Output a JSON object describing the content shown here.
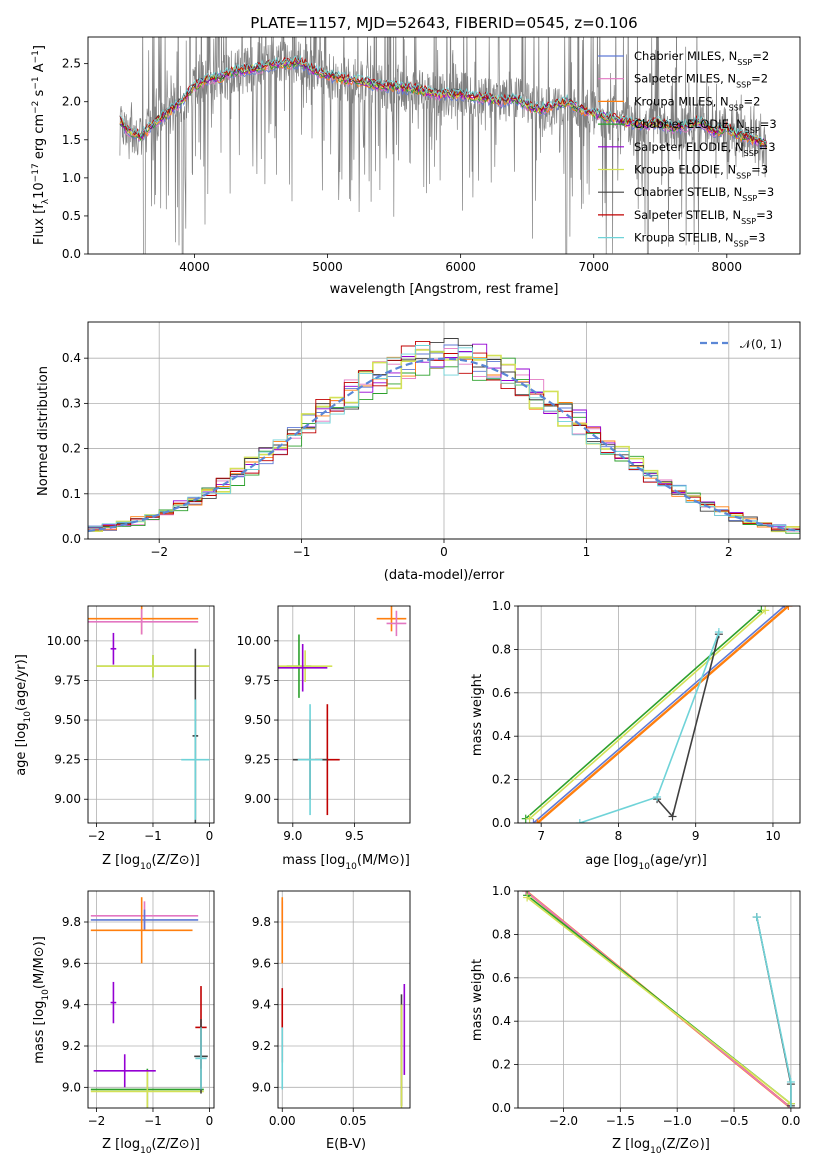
{
  "chart_data": [
    {
      "id": "spectrum",
      "type": "line",
      "title": "PLATE=1157, MJD=52643, FIBERID=0545, z=0.106",
      "xlabel": "wavelength [Angstrom, rest frame]",
      "ylabel": "Flux [f_λ 10^-17 erg cm^-2 s^-1 A^-1]",
      "xlim": [
        3200,
        8550
      ],
      "ylim": [
        0,
        2.85
      ],
      "xticks": [
        "4000",
        "5000",
        "6000",
        "7000",
        "8000"
      ],
      "yticks": [
        "0.0",
        "0.5",
        "1.0",
        "1.5",
        "2.0",
        "2.5"
      ],
      "grid": false,
      "legend_position": "top-right",
      "data_color": "#808080",
      "continuum": {
        "x": [
          3440,
          3500,
          3600,
          3700,
          3800,
          3900,
          4000,
          4100,
          4200,
          4300,
          4400,
          4500,
          4600,
          4700,
          4800,
          4900,
          5000,
          5100,
          5200,
          5300,
          5400,
          5500,
          5600,
          5700,
          5800,
          5900,
          6000,
          6100,
          6200,
          6300,
          6400,
          6500,
          6600,
          6700,
          6800,
          6900,
          7000,
          7100,
          7200,
          7300,
          7400,
          7500,
          7600,
          7700,
          7800,
          7900,
          8000,
          8100,
          8200,
          8300
        ],
        "y": [
          1.75,
          1.62,
          1.55,
          1.72,
          1.85,
          2.0,
          2.2,
          2.3,
          2.32,
          2.4,
          2.42,
          2.45,
          2.5,
          2.5,
          2.52,
          2.4,
          2.35,
          2.3,
          2.28,
          2.25,
          2.2,
          2.2,
          2.18,
          2.15,
          2.1,
          2.1,
          2.1,
          2.05,
          2.05,
          2.0,
          2.05,
          1.95,
          1.9,
          1.95,
          2.0,
          1.9,
          1.85,
          1.8,
          1.75,
          1.72,
          1.7,
          1.72,
          1.65,
          1.68,
          1.75,
          1.6,
          1.65,
          1.55,
          1.5,
          1.45
        ]
      },
      "legend_entries": [
        {
          "prefix": "Chabrier MILES, N",
          "sub": "SSP",
          "suffix": "=2",
          "color": "#5f7ad6"
        },
        {
          "prefix": "Salpeter MILES, N",
          "sub": "SSP",
          "suffix": "=2",
          "color": "#e377c2"
        },
        {
          "prefix": "Kroupa MILES, N",
          "sub": "SSP",
          "suffix": "=2",
          "color": "#ff7f0e"
        },
        {
          "prefix": "Chabrier ELODIE, N",
          "sub": "SSP",
          "suffix": "=3",
          "color": "#2ca02c"
        },
        {
          "prefix": "Salpeter ELODIE, N",
          "sub": "SSP",
          "suffix": "=3",
          "color": "#9400d3"
        },
        {
          "prefix": "Kroupa ELODIE, N",
          "sub": "SSP",
          "suffix": "=3",
          "color": "#d4e157"
        },
        {
          "prefix": "Chabrier STELIB, N",
          "sub": "SSP",
          "suffix": "=3",
          "color": "#404040"
        },
        {
          "prefix": "Salpeter STELIB, N",
          "sub": "SSP",
          "suffix": "=3",
          "color": "#c00000"
        },
        {
          "prefix": "Kroupa STELIB, N",
          "sub": "SSP",
          "suffix": "=3",
          "color": "#6fd3d8"
        }
      ]
    },
    {
      "id": "residuals",
      "type": "line",
      "xlabel": "(data-model)/error",
      "ylabel": "Normed distribution",
      "xlim": [
        -2.5,
        2.5
      ],
      "ylim": [
        0,
        0.48
      ],
      "xticks": [
        "−2",
        "−1",
        "0",
        "1",
        "2"
      ],
      "yticks": [
        "0.0",
        "0.1",
        "0.2",
        "0.3",
        "0.4"
      ],
      "grid": true,
      "legend": {
        "label": "𝒩(0, 1)",
        "color": "#5b87d6"
      },
      "legend_position": "top-right",
      "gaussian": {
        "mu": 0,
        "sigma": 1
      },
      "bin_width": 0.1
    },
    {
      "id": "age_vs_Z",
      "type": "scatter",
      "xlabel": "Z [log10(Z/Z⊙)]",
      "ylabel": "age  [log10(age/yr)]",
      "xlim": [
        -2.15,
        0.08
      ],
      "ylim": [
        8.85,
        10.22
      ],
      "xticks": [
        "−2",
        "−1",
        "0"
      ],
      "yticks": [
        "9.00",
        "9.25",
        "9.50",
        "9.75",
        "10.00"
      ],
      "grid": true,
      "series": [
        {
          "color": "#ff7f0e",
          "x": -1.2,
          "xerr": 1.0,
          "y": 10.14,
          "yerr": 0.1
        },
        {
          "color": "#e377c2",
          "x": -1.2,
          "xerr": 1.0,
          "y": 10.12,
          "yerr": 0.08
        },
        {
          "color": "#2ca02c",
          "x": -1.0,
          "xerr": 1.0,
          "y": 9.84,
          "yerr": 0.07
        },
        {
          "color": "#d4e157",
          "x": -1.0,
          "xerr": 1.0,
          "y": 9.84,
          "yerr": 0.07
        },
        {
          "color": "#404040",
          "x": -0.25,
          "xerr": 0.05,
          "y": 9.4,
          "yerr": 0.55
        },
        {
          "color": "#6fd3d8",
          "x": -0.25,
          "xerr": 0.25,
          "y": 9.25,
          "yerr": 0.38
        },
        {
          "color": "#9400d3",
          "x": -1.7,
          "xerr": 0.05,
          "y": 9.95,
          "yerr": 0.1
        }
      ]
    },
    {
      "id": "age_vs_mass",
      "type": "scatter",
      "xlabel": "mass [log10(M/M⊙)]",
      "ylabel": "",
      "xlim": [
        8.88,
        9.95
      ],
      "ylim": [
        8.85,
        10.22
      ],
      "xticks": [
        "9.0",
        "9.5"
      ],
      "yticks": [
        "9.00",
        "9.25",
        "9.50",
        "9.75",
        "10.00"
      ],
      "grid": true,
      "series": [
        {
          "color": "#ff7f0e",
          "x": 9.8,
          "xerr": 0.12,
          "y": 10.14,
          "yerr": 0.08
        },
        {
          "color": "#e377c2",
          "x": 9.84,
          "xerr": 0.08,
          "y": 10.11,
          "yerr": 0.08
        },
        {
          "color": "#2ca02c",
          "x": 9.05,
          "xerr": 0.1,
          "y": 9.84,
          "yerr": 0.2
        },
        {
          "color": "#d4e157",
          "x": 9.1,
          "xerr": 0.22,
          "y": 9.84,
          "yerr": 0.1
        },
        {
          "color": "#9400d3",
          "x": 9.08,
          "xerr": 0.2,
          "y": 9.83,
          "yerr": 0.15
        },
        {
          "color": "#c00000",
          "x": 9.28,
          "xerr": 0.1,
          "y": 9.25,
          "yerr": 0.35
        },
        {
          "color": "#404040",
          "x": 9.14,
          "xerr": 0.14,
          "y": 9.25,
          "yerr": 0.25
        },
        {
          "color": "#6fd3d8",
          "x": 9.14,
          "xerr": 0.1,
          "y": 9.25,
          "yerr": 0.35
        }
      ]
    },
    {
      "id": "weight_vs_age",
      "type": "line",
      "xlabel": "age  [log10(age/yr)]",
      "ylabel": "mass weight",
      "xlim": [
        6.7,
        10.35
      ],
      "ylim": [
        0,
        1.0
      ],
      "xticks": [
        "7",
        "8",
        "9",
        "10"
      ],
      "yticks": [
        "0.0",
        "0.2",
        "0.4",
        "0.6",
        "0.8",
        "1.0"
      ],
      "grid": true,
      "series": [
        {
          "color": "#5f7ad6",
          "x": [
            6.9,
            10.15
          ],
          "y": [
            0.0,
            1.0
          ]
        },
        {
          "color": "#e377c2",
          "x": [
            6.95,
            10.2
          ],
          "y": [
            0.0,
            1.0
          ]
        },
        {
          "color": "#ff7f0e",
          "x": [
            6.95,
            10.2
          ],
          "y": [
            0.0,
            1.0
          ]
        },
        {
          "color": "#2ca02c",
          "x": [
            6.8,
            9.85
          ],
          "y": [
            0.02,
            0.98
          ]
        },
        {
          "color": "#d4e157",
          "x": [
            6.85,
            9.9
          ],
          "y": [
            0.02,
            0.98
          ]
        },
        {
          "color": "#404040",
          "x": [
            8.5,
            8.7,
            9.3
          ],
          "y": [
            0.11,
            0.03,
            0.87
          ]
        },
        {
          "color": "#6fd3d8",
          "x": [
            7.5,
            8.5,
            9.3
          ],
          "y": [
            0.0,
            0.12,
            0.88
          ]
        }
      ]
    },
    {
      "id": "mass_vs_Z",
      "type": "scatter",
      "xlabel": "Z [log10(Z/Z⊙)]",
      "ylabel": "mass [log10(M/M⊙)]",
      "xlim": [
        -2.15,
        0.08
      ],
      "ylim": [
        8.9,
        9.95
      ],
      "xticks": [
        "−2",
        "−1",
        "0"
      ],
      "yticks": [
        "9.0",
        "9.2",
        "9.4",
        "9.6",
        "9.8"
      ],
      "grid": true,
      "series": [
        {
          "color": "#e377c2",
          "x": -1.15,
          "xerr": 0.95,
          "y": 9.83,
          "yerr": 0.07
        },
        {
          "color": "#5f7ad6",
          "x": -1.15,
          "xerr": 0.95,
          "y": 9.81,
          "yerr": 0.05
        },
        {
          "color": "#ff7f0e",
          "x": -1.2,
          "xerr": 0.9,
          "y": 9.76,
          "yerr": 0.16
        },
        {
          "color": "#9400d3",
          "x": -1.7,
          "xerr": 0.05,
          "y": 9.41,
          "yerr": 0.1
        },
        {
          "color": "#2ca02c",
          "x": -1.1,
          "xerr": 1.0,
          "y": 8.99,
          "yerr": 0.1
        },
        {
          "color": "#d4e157",
          "x": -1.1,
          "xerr": 1.0,
          "y": 8.98,
          "yerr": 0.1
        },
        {
          "color": "#9400d3",
          "x": -1.5,
          "xerr": 0.55,
          "y": 9.08,
          "yerr": 0.08
        },
        {
          "color": "#c00000",
          "x": -0.15,
          "xerr": 0.1,
          "y": 9.29,
          "yerr": 0.2
        },
        {
          "color": "#404040",
          "x": -0.15,
          "xerr": 0.12,
          "y": 9.15,
          "yerr": 0.18
        },
        {
          "color": "#6fd3d8",
          "x": -0.15,
          "xerr": 0.1,
          "y": 9.14,
          "yerr": 0.15
        }
      ]
    },
    {
      "id": "mass_vs_ebv",
      "type": "scatter",
      "xlabel": "E(B-V)",
      "ylabel": "",
      "xlim": [
        -0.003,
        0.09
      ],
      "ylim": [
        8.9,
        9.95
      ],
      "xticks": [
        "0.00",
        "0.05"
      ],
      "yticks": [
        "9.0",
        "9.2",
        "9.4",
        "9.6",
        "9.8"
      ],
      "grid": true,
      "series": [
        {
          "color": "#e377c2",
          "x": 0.0,
          "xerr": 0.0,
          "y": 9.83,
          "yerr": 0.07
        },
        {
          "color": "#ff7f0e",
          "x": 0.0,
          "xerr": 0.0,
          "y": 9.76,
          "yerr": 0.16
        },
        {
          "color": "#c00000",
          "x": 0.0,
          "xerr": 0.0,
          "y": 9.3,
          "yerr": 0.18
        },
        {
          "color": "#6fd3d8",
          "x": 0.0,
          "xerr": 0.0,
          "y": 9.14,
          "yerr": 0.15
        },
        {
          "color": "#9400d3",
          "x": 0.086,
          "xerr": 0.0,
          "y": 9.28,
          "yerr": 0.22
        },
        {
          "color": "#404040",
          "x": 0.084,
          "xerr": 0.0,
          "y": 9.18,
          "yerr": 0.27
        },
        {
          "color": "#d4e157",
          "x": 0.084,
          "xerr": 0.0,
          "y": 9.15,
          "yerr": 0.25
        }
      ]
    },
    {
      "id": "weight_vs_Z",
      "type": "line",
      "xlabel": "Z [log10(Z/Z⊙)]",
      "ylabel": "mass weight",
      "xlim": [
        -2.4,
        0.08
      ],
      "ylim": [
        0,
        1.0
      ],
      "xticks": [
        "−2.0",
        "−1.5",
        "−1.0",
        "−0.5",
        "0.0"
      ],
      "yticks": [
        "0.0",
        "0.2",
        "0.4",
        "0.6",
        "0.8",
        "1.0"
      ],
      "grid": true,
      "series": [
        {
          "color": "#ff7f0e",
          "x": [
            -2.33,
            0.0
          ],
          "y": [
            1.0,
            0.0
          ]
        },
        {
          "color": "#e377c2",
          "x": [
            -2.33,
            0.0
          ],
          "y": [
            1.0,
            0.0
          ]
        },
        {
          "color": "#2ca02c",
          "x": [
            -2.32,
            0.0
          ],
          "y": [
            0.98,
            0.02
          ]
        },
        {
          "color": "#d4e157",
          "x": [
            -2.32,
            0.0
          ],
          "y": [
            0.97,
            0.02
          ]
        },
        {
          "color": "#404040",
          "x": [
            -0.3,
            0.0,
            0.0
          ],
          "y": [
            0.88,
            0.11,
            0.01
          ]
        },
        {
          "color": "#6fd3d8",
          "x": [
            -0.3,
            0.0,
            0.0
          ],
          "y": [
            0.88,
            0.12,
            0.0
          ]
        }
      ]
    }
  ]
}
